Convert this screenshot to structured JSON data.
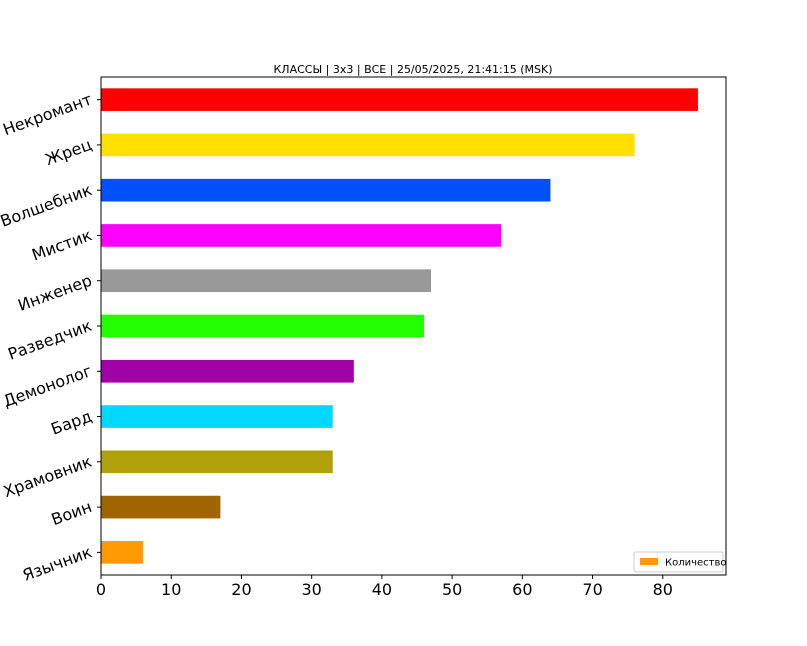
{
  "chart_data": {
    "type": "bar",
    "orientation": "horizontal",
    "title": "КЛАССЫ | 3x3 | ВСЕ | 25/05/2025, 21:41:15 (MSK)",
    "xlabel": "",
    "ylabel": "",
    "xlim": [
      0,
      89
    ],
    "xticks": [
      0,
      10,
      20,
      30,
      40,
      50,
      60,
      70,
      80
    ],
    "grid": false,
    "legend_position": "lower-right",
    "series": [
      {
        "name": "Количество",
        "color": "#ff9a00"
      }
    ],
    "categories": [
      "Некромант",
      "Жрец",
      "Волшебник",
      "Мистик",
      "Инженер",
      "Разведчик",
      "Демонолог",
      "Бард",
      "Храмовник",
      "Воин",
      "Язычник"
    ],
    "values": [
      85,
      76,
      64,
      57,
      47,
      46,
      36,
      33,
      33,
      17,
      6
    ],
    "colors": [
      "#ff0000",
      "#ffe000",
      "#0050ff",
      "#ff00ff",
      "#999999",
      "#22ff00",
      "#a000a8",
      "#00d8ff",
      "#b0a00a",
      "#a06400",
      "#ff9a00"
    ]
  }
}
